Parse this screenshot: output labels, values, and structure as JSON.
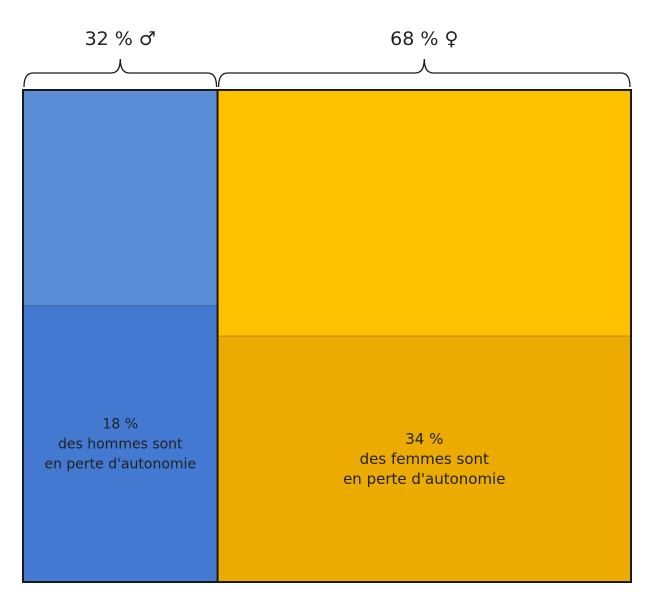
{
  "chart_data": {
    "type": "mosaic",
    "groups": [
      {
        "share_label": "32 % ♂",
        "share": 32,
        "dependent_share": 18,
        "dependent_label_lines": [
          "18 %",
          "des hommes sont",
          "en perte d'autonomie"
        ],
        "color_top": "#5b8dd6",
        "color_bottom": "#4379d0"
      },
      {
        "share_label": "68 % ♀",
        "share": 68,
        "dependent_share": 34,
        "dependent_label_lines": [
          "34 %",
          "des femmes sont",
          "en perte d'autonomie"
        ],
        "color_top": "#fdc100",
        "color_bottom": "#ebab00"
      }
    ],
    "border_color": "#1a1a1a",
    "text_color": "#222222"
  }
}
